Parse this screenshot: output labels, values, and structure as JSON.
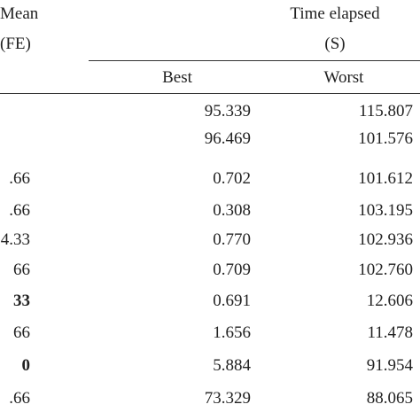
{
  "header": {
    "mean_line1": "Mean",
    "mean_line2": "(FE)",
    "time_title": "Time elapsed",
    "time_unit": "(S)",
    "best": "Best",
    "worst": "Worst"
  },
  "table": {
    "rows": [
      {
        "best": "95.339",
        "worst": "115.807"
      },
      {
        "best": "96.469",
        "worst": "101.576"
      },
      {
        "mean": ".66",
        "best": "0.702",
        "worst": "101.612"
      },
      {
        "mean": ".66",
        "best": "0.308",
        "worst": "103.195"
      },
      {
        "mean": "4.33",
        "best": "0.770",
        "worst": "102.936"
      },
      {
        "mean": "66",
        "best": "0.709",
        "worst": "102.760"
      },
      {
        "mean": "33",
        "bold": true,
        "best": "0.691",
        "worst": "12.606"
      },
      {
        "mean": "66",
        "best": "1.656",
        "worst": "11.478"
      },
      {
        "mean": "0",
        "bold": true,
        "best": "5.884",
        "worst": "91.954"
      },
      {
        "mean": ".66",
        "best": "73.329",
        "worst": "88.065"
      }
    ]
  }
}
